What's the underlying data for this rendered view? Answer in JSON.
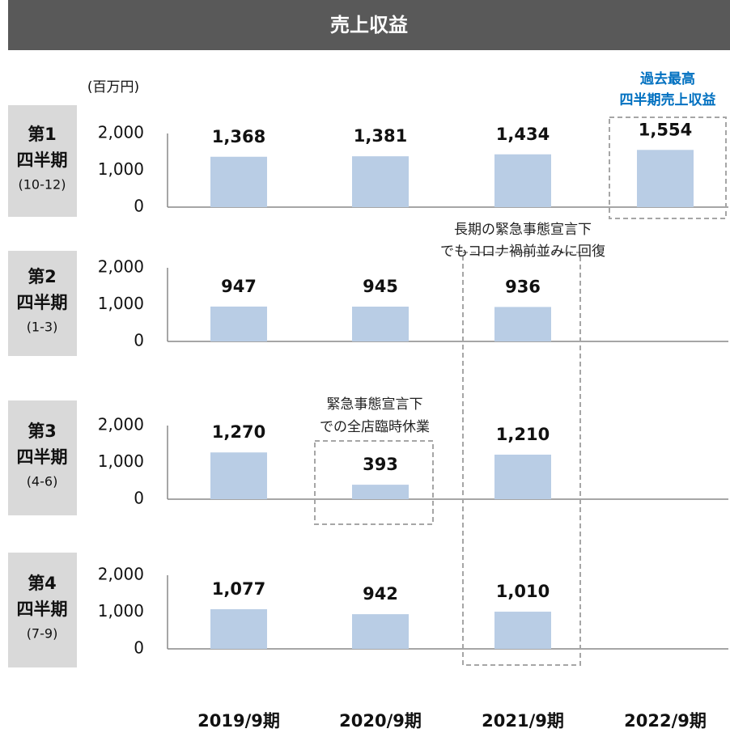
{
  "title": "売上収益",
  "unit": "(百万円)",
  "chart_data": [
    {
      "type": "bar",
      "label": [
        "第1",
        "四半期"
      ],
      "period": "(10-12)",
      "categories": [
        "2019/9期",
        "2020/9期",
        "2021/9期",
        "2022/9期"
      ],
      "values": [
        1368,
        1381,
        1434,
        1554
      ],
      "value_labels": [
        "1,368",
        "1,381",
        "1,434",
        "1,554"
      ],
      "ylim": [
        0,
        2000
      ],
      "yticks": [
        0,
        {
          "value": 1000,
          "label": "1,000"
        },
        {
          "value": 2000,
          "label": "2,000"
        }
      ],
      "color": "#b9cde5"
    },
    {
      "type": "bar",
      "label": [
        "第2",
        "四半期"
      ],
      "period": "(1-3)",
      "values": [
        947,
        945,
        936
      ],
      "ylim": [
        0,
        2000
      ],
      "yticks": [
        0,
        {
          "value": 1000,
          "label": "1,000"
        },
        {
          "value": 2000,
          "label": "2,000"
        }
      ],
      "color": "#b9cde5"
    },
    {
      "type": "bar",
      "label": [
        "第3",
        "四半期"
      ],
      "period": "(4-6)",
      "values": [
        1270,
        393,
        1210
      ],
      "value_labels": [
        "1,270",
        "393",
        "1,210"
      ],
      "ylim": [
        0,
        2000
      ],
      "yticks": [
        0,
        {
          "value": 1000,
          "label": "1,000"
        },
        {
          "value": 2000,
          "label": "2,000"
        }
      ],
      "color": "#b9cde5"
    },
    {
      "type": "bar",
      "label": [
        "第4",
        "四半期"
      ],
      "period": "(7-9)",
      "values": [
        1077,
        942,
        1010
      ],
      "value_labels": [
        "1,077",
        "942",
        "1,010"
      ],
      "ylim": [
        0,
        2000
      ],
      "yticks": [
        0,
        {
          "value": 1000,
          "label": "1,000"
        },
        {
          "value": 2000,
          "label": "2,000"
        }
      ],
      "color": "#b9cde5"
    }
  ],
  "annotations": [
    {
      "lines": [
        "過去最高",
        "四半期売上収益"
      ],
      "color": "#0070c0"
    },
    {
      "lines": [
        "長期の緊急事態宣言下",
        "でもコロナ禍前並みに回復"
      ],
      "color": "#222222"
    },
    {
      "lines": [
        "緊急事態宣言下",
        "での全店臨時休業"
      ],
      "color": "#222222"
    }
  ]
}
